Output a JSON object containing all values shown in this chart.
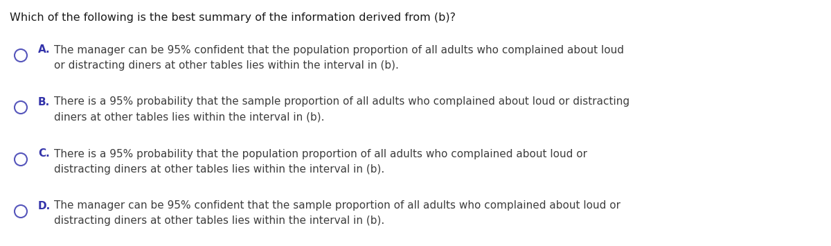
{
  "question": "Which of the following is the best summary of the information derived from (b)?",
  "options": [
    {
      "label": "A.",
      "line1": "The manager can be 95% confident that the population proportion of all adults who complained about loud",
      "line2": "or distracting diners at other tables lies within the interval in (b)."
    },
    {
      "label": "B.",
      "line1": "There is a 95% probability that the sample proportion of all adults who complained about loud or distracting",
      "line2": "diners at other tables lies within the interval in (b)."
    },
    {
      "label": "C.",
      "line1": "There is a 95% probability that the population proportion of all adults who complained about loud or",
      "line2": "distracting diners at other tables lies within the interval in (b)."
    },
    {
      "label": "D.",
      "line1": "The manager can be 95% confident that the sample proportion of all adults who complained about loud or",
      "line2": "distracting diners at other tables lies within the interval in (b)."
    }
  ],
  "background_color": "#ffffff",
  "text_color": "#3d3d3d",
  "label_color": "#3333aa",
  "question_color": "#1a1a1a",
  "font_size": 11.0,
  "question_font_size": 11.5,
  "circle_color": "#5555bb",
  "fig_width": 12.0,
  "fig_height": 3.55
}
